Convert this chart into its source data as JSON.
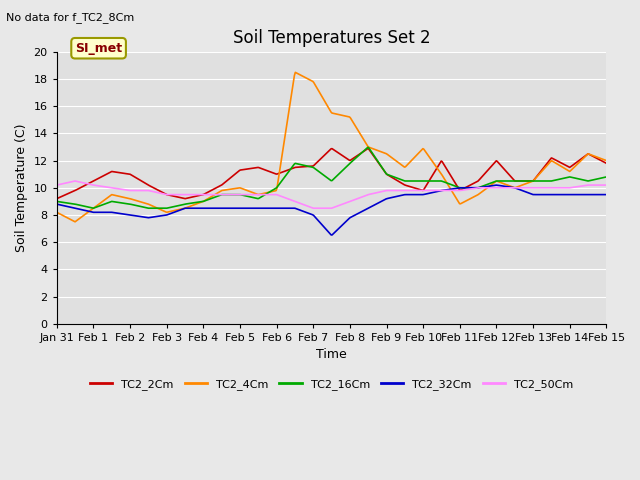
{
  "title": "Soil Temperatures Set 2",
  "subtitle": "No data for f_TC2_8Cm",
  "xlabel": "Time",
  "ylabel": "Soil Temperature (C)",
  "ylim": [
    0,
    20
  ],
  "yticks": [
    0,
    2,
    4,
    6,
    8,
    10,
    12,
    14,
    16,
    18,
    20
  ],
  "background_color": "#e8e8e8",
  "plot_bg_color": "#e0e0e0",
  "annotation_text": "SI_met",
  "annotation_bg": "#ffffcc",
  "annotation_border": "#999900",
  "annotation_text_color": "#880000",
  "series": {
    "TC2_2Cm": {
      "color": "#cc0000",
      "x": [
        0,
        0.5,
        1,
        1.5,
        2,
        2.5,
        3,
        3.5,
        4,
        4.5,
        5,
        5.5,
        6,
        6.5,
        7,
        7.5,
        8,
        8.5,
        9,
        9.5,
        10,
        10.5,
        11,
        11.5,
        12,
        12.5,
        13,
        13.5,
        14,
        14.5,
        15
      ],
      "y": [
        9.2,
        9.8,
        10.5,
        11.2,
        11.0,
        10.2,
        9.5,
        9.2,
        9.5,
        10.2,
        11.3,
        11.5,
        11.0,
        11.5,
        11.6,
        12.9,
        12.0,
        12.9,
        11.0,
        10.2,
        9.8,
        12.0,
        9.8,
        10.5,
        12.0,
        10.5,
        10.5,
        12.2,
        11.5,
        12.5,
        11.8
      ]
    },
    "TC2_4Cm": {
      "color": "#ff8800",
      "x": [
        0,
        0.5,
        1,
        1.5,
        2,
        2.5,
        3,
        3.5,
        4,
        4.5,
        5,
        5.5,
        6,
        6.5,
        7,
        7.5,
        8,
        8.5,
        9,
        9.5,
        10,
        10.5,
        11,
        11.5,
        12,
        12.5,
        13,
        13.5,
        14,
        14.5,
        15
      ],
      "y": [
        8.2,
        7.5,
        8.5,
        9.5,
        9.2,
        8.8,
        8.2,
        8.5,
        9.0,
        9.8,
        10.0,
        9.5,
        9.8,
        18.5,
        17.8,
        15.5,
        15.2,
        13.0,
        12.5,
        11.5,
        12.9,
        11.0,
        8.8,
        9.5,
        10.5,
        10.0,
        10.5,
        12.0,
        11.2,
        12.5,
        12.0
      ]
    },
    "TC2_16Cm": {
      "color": "#00aa00",
      "x": [
        0,
        0.5,
        1,
        1.5,
        2,
        2.5,
        3,
        3.5,
        4,
        4.5,
        5,
        5.5,
        6,
        6.5,
        7,
        7.5,
        8,
        8.5,
        9,
        9.5,
        10,
        10.5,
        11,
        11.5,
        12,
        12.5,
        13,
        13.5,
        14,
        14.5,
        15
      ],
      "y": [
        9.0,
        8.8,
        8.5,
        9.0,
        8.8,
        8.5,
        8.5,
        8.8,
        9.0,
        9.5,
        9.5,
        9.2,
        10.0,
        11.8,
        11.5,
        10.5,
        11.8,
        13.0,
        11.0,
        10.5,
        10.5,
        10.5,
        10.0,
        10.0,
        10.5,
        10.5,
        10.5,
        10.5,
        10.8,
        10.5,
        10.8
      ]
    },
    "TC2_32Cm": {
      "color": "#0000cc",
      "x": [
        0,
        0.5,
        1,
        1.5,
        2,
        2.5,
        3,
        3.5,
        4,
        4.5,
        5,
        5.5,
        6,
        6.5,
        7,
        7.5,
        8,
        8.5,
        9,
        9.5,
        10,
        10.5,
        11,
        11.5,
        12,
        12.5,
        13,
        13.5,
        14,
        14.5,
        15
      ],
      "y": [
        8.8,
        8.5,
        8.2,
        8.2,
        8.0,
        7.8,
        8.0,
        8.5,
        8.5,
        8.5,
        8.5,
        8.5,
        8.5,
        8.5,
        8.0,
        6.5,
        7.8,
        8.5,
        9.2,
        9.5,
        9.5,
        9.8,
        10.0,
        10.0,
        10.2,
        10.0,
        9.5,
        9.5,
        9.5,
        9.5,
        9.5
      ]
    },
    "TC2_50Cm": {
      "color": "#ff88ff",
      "x": [
        0,
        0.5,
        1,
        1.5,
        2,
        2.5,
        3,
        3.5,
        4,
        4.5,
        5,
        5.5,
        6,
        6.5,
        7,
        7.5,
        8,
        8.5,
        9,
        9.5,
        10,
        10.5,
        11,
        11.5,
        12,
        12.5,
        13,
        13.5,
        14,
        14.5,
        15
      ],
      "y": [
        10.2,
        10.5,
        10.2,
        10.0,
        9.8,
        9.8,
        9.5,
        9.5,
        9.5,
        9.5,
        9.5,
        9.5,
        9.5,
        9.0,
        8.5,
        8.5,
        9.0,
        9.5,
        9.8,
        9.8,
        9.8,
        9.8,
        9.8,
        10.0,
        10.0,
        10.0,
        10.0,
        10.0,
        10.0,
        10.2,
        10.2
      ]
    }
  },
  "xtick_labels": [
    "Jan 31",
    "Feb 1",
    "Feb 2",
    "Feb 3",
    "Feb 4",
    "Feb 5",
    "Feb 6",
    "Feb 7",
    "Feb 8",
    "Feb 9",
    "Feb 10",
    "Feb 11",
    "Feb 12",
    "Feb 13",
    "Feb 14",
    "Feb 15"
  ],
  "xtick_positions": [
    0,
    1,
    2,
    3,
    4,
    5,
    6,
    7,
    8,
    9,
    10,
    11,
    12,
    13,
    14,
    15
  ],
  "legend_labels": [
    "TC2_2Cm",
    "TC2_4Cm",
    "TC2_16Cm",
    "TC2_32Cm",
    "TC2_50Cm"
  ],
  "legend_colors": [
    "#cc0000",
    "#ff8800",
    "#00aa00",
    "#0000cc",
    "#ff88ff"
  ]
}
